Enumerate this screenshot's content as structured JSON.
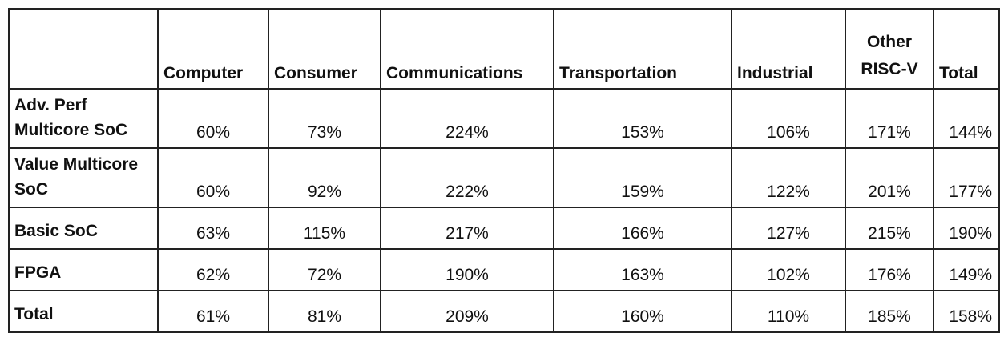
{
  "chart_data": {
    "type": "table",
    "columns": [
      "Computer",
      "Consumer",
      "Communications",
      "Transportation",
      "Industrial",
      "Other RISC-V",
      "Total"
    ],
    "rows": [
      {
        "label": "Adv. Perf Multicore SoC",
        "values": [
          "60%",
          "73%",
          "224%",
          "153%",
          "106%",
          "171%",
          "144%"
        ]
      },
      {
        "label": "Value Multicore SoC",
        "values": [
          "60%",
          "92%",
          "222%",
          "159%",
          "122%",
          "201%",
          "177%"
        ]
      },
      {
        "label": "Basic SoC",
        "values": [
          "63%",
          "115%",
          "217%",
          "166%",
          "127%",
          "215%",
          "190%"
        ]
      },
      {
        "label": "FPGA",
        "values": [
          "62%",
          "72%",
          "190%",
          "163%",
          "102%",
          "176%",
          "149%"
        ]
      },
      {
        "label": "Total",
        "values": [
          "61%",
          "81%",
          "209%",
          "160%",
          "110%",
          "185%",
          "158%"
        ]
      }
    ]
  }
}
